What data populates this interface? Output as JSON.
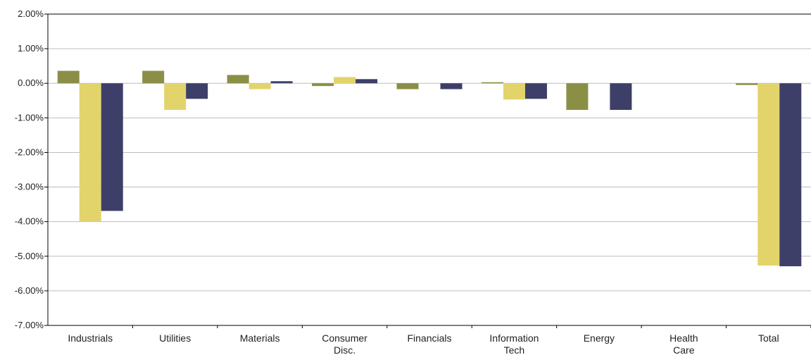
{
  "chart_data": {
    "type": "bar",
    "categories": [
      [
        "Industrials"
      ],
      [
        "Utilities"
      ],
      [
        "Materials"
      ],
      [
        "Consumer",
        "Disc."
      ],
      [
        "Financials"
      ],
      [
        "Information",
        "Tech"
      ],
      [
        "Energy"
      ],
      [
        "Health",
        "Care"
      ],
      [
        "Total"
      ]
    ],
    "series": [
      {
        "color": "#8b8f45",
        "values": [
          0.36,
          0.36,
          0.24,
          -0.08,
          -0.17,
          0.03,
          -0.77,
          0.0,
          -0.05
        ]
      },
      {
        "color": "#e2d46b",
        "values": [
          -4.0,
          -0.77,
          -0.17,
          0.18,
          0.0,
          -0.47,
          0.0,
          0.0,
          -5.27
        ]
      },
      {
        "color": "#3e3f68",
        "values": [
          -3.69,
          -0.45,
          0.06,
          0.12,
          -0.17,
          -0.45,
          -0.77,
          0.0,
          -5.29
        ]
      }
    ],
    "yticks": [
      "2.00%",
      "1.00%",
      "0.00%",
      "-1.00%",
      "-2.00%",
      "-3.00%",
      "-4.00%",
      "-5.00%",
      "-6.00%",
      "-7.00%"
    ],
    "ylim": [
      -7,
      2
    ],
    "grid": true,
    "legend": "none"
  }
}
